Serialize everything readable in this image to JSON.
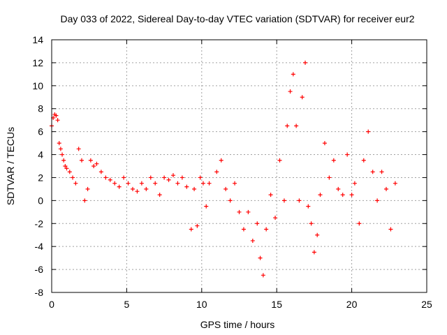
{
  "chart_data": {
    "type": "scatter",
    "title": "Day 033 of 2022, Sidereal Day-to-day VTEC variation (SDTVAR) for receiver eur2",
    "xlabel": "GPS time / hours",
    "ylabel": "SDTVAR / TECUs",
    "xlim": [
      0,
      25
    ],
    "ylim": [
      -8,
      14
    ],
    "xticks": [
      0,
      5,
      10,
      15,
      20,
      25
    ],
    "yticks": [
      -8,
      -6,
      -4,
      -2,
      0,
      2,
      4,
      6,
      8,
      10,
      12,
      14
    ],
    "grid": true,
    "marker": "+",
    "color": "#ff0000",
    "series": [
      {
        "name": "SDTVAR",
        "x": [
          0.0,
          0.1,
          0.2,
          0.3,
          0.4,
          0.5,
          0.6,
          0.7,
          0.8,
          0.9,
          1.0,
          1.2,
          1.4,
          1.6,
          1.8,
          2.0,
          2.2,
          2.4,
          2.6,
          2.8,
          3.0,
          3.3,
          3.6,
          3.9,
          4.2,
          4.5,
          4.8,
          5.1,
          5.4,
          5.7,
          6.0,
          6.3,
          6.6,
          6.9,
          7.2,
          7.5,
          7.8,
          8.1,
          8.4,
          8.7,
          9.0,
          9.3,
          9.5,
          9.7,
          9.9,
          10.1,
          10.3,
          10.5,
          11.0,
          11.3,
          11.6,
          11.9,
          12.2,
          12.5,
          12.8,
          13.1,
          13.4,
          13.7,
          13.9,
          14.1,
          14.3,
          14.6,
          14.9,
          15.2,
          15.5,
          15.7,
          15.9,
          16.1,
          16.3,
          16.5,
          16.7,
          16.9,
          17.1,
          17.3,
          17.5,
          17.7,
          17.9,
          18.2,
          18.5,
          18.8,
          19.1,
          19.4,
          19.7,
          20.0,
          20.2,
          20.5,
          20.8,
          21.1,
          21.4,
          21.7,
          22.0,
          22.3,
          22.6,
          22.9
        ],
        "y": [
          6.5,
          7.2,
          7.5,
          7.4,
          7.0,
          5.0,
          4.5,
          4.0,
          3.5,
          3.0,
          2.8,
          2.5,
          2.0,
          1.5,
          4.5,
          3.5,
          0.0,
          1.0,
          3.5,
          3.0,
          3.2,
          2.5,
          2.0,
          1.8,
          1.5,
          1.2,
          2.0,
          1.5,
          1.0,
          0.8,
          1.5,
          1.0,
          2.0,
          1.5,
          0.5,
          2.0,
          1.8,
          2.2,
          1.5,
          2.0,
          1.2,
          -2.5,
          1.0,
          -2.2,
          2.0,
          1.5,
          -0.5,
          1.5,
          2.5,
          3.5,
          1.0,
          0.0,
          1.5,
          -1.0,
          -2.5,
          -1.0,
          -3.5,
          -2.0,
          -5.0,
          -6.5,
          -2.5,
          0.5,
          -1.5,
          3.5,
          0.0,
          6.5,
          9.5,
          11.0,
          6.5,
          0.0,
          9.0,
          12.0,
          -0.5,
          -2.0,
          -4.5,
          -3.0,
          0.5,
          5.0,
          2.0,
          3.5,
          1.0,
          0.5,
          4.0,
          0.5,
          1.5,
          -2.0,
          3.5,
          6.0,
          2.5,
          0.0,
          2.5,
          1.0,
          -2.5,
          1.5
        ]
      }
    ]
  }
}
